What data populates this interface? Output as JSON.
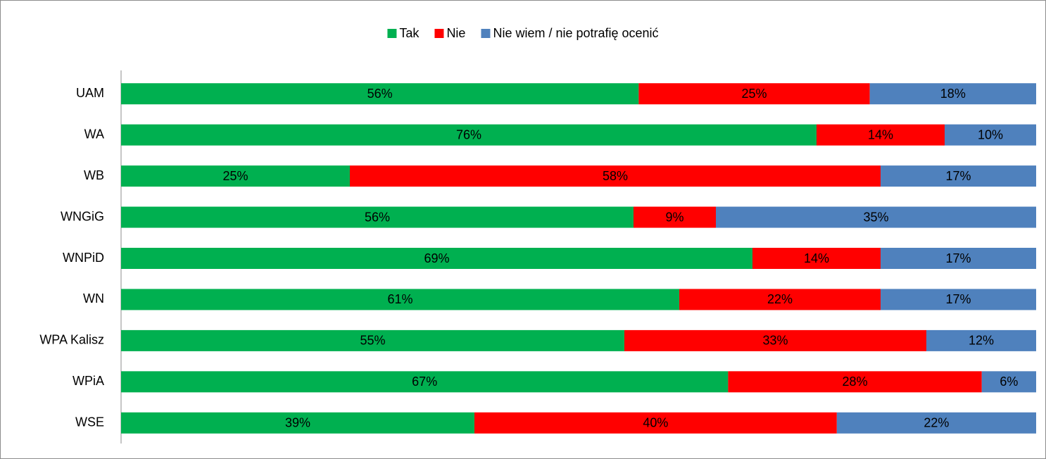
{
  "chart_data": {
    "type": "bar",
    "orientation": "horizontal",
    "stacked": "percent",
    "categories": [
      "UAM",
      "WA",
      "WB",
      "WNGiG",
      "WNPiD",
      "WN",
      "WPA Kalisz",
      "WPiA",
      "WSE"
    ],
    "series": [
      {
        "name": "Tak",
        "color": "#00b050",
        "values": [
          56,
          76,
          25,
          56,
          69,
          61,
          55,
          67,
          39
        ],
        "value_labels": [
          "56%",
          "76%",
          "25%",
          "56%",
          "69%",
          "61%",
          "55%",
          "67%",
          "39%"
        ]
      },
      {
        "name": "Nie",
        "color": "#ff0000",
        "values": [
          25,
          14,
          58,
          9,
          14,
          22,
          33,
          28,
          40
        ],
        "value_labels": [
          "25%",
          "14%",
          "58%",
          "9%",
          "14%",
          "22%",
          "33%",
          "28%",
          "40%"
        ]
      },
      {
        "name": "Nie wiem / nie potrafię ocenić",
        "color": "#4f81bd",
        "values": [
          18,
          10,
          17,
          35,
          17,
          17,
          12,
          6,
          22
        ],
        "value_labels": [
          "18%",
          "10%",
          "17%",
          "35%",
          "17%",
          "17%",
          "12%",
          "6%",
          "22%"
        ]
      }
    ],
    "legend": "top"
  }
}
